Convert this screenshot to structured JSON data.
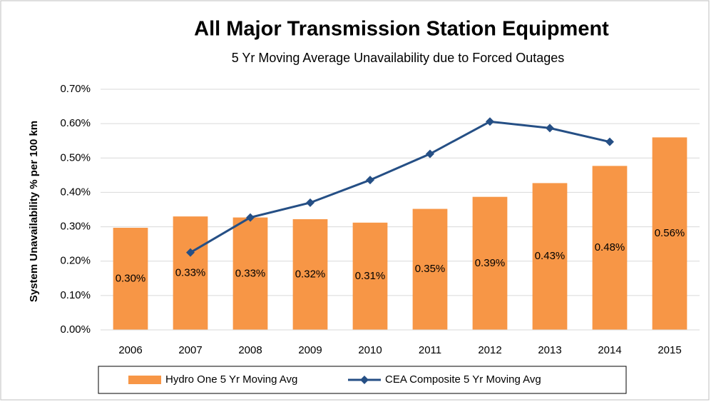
{
  "chart_data": {
    "type": "bar",
    "title": "All Major Transmission Station Equipment",
    "subtitle": "5 Yr Moving Average Unavailability due to Forced Outages",
    "y_label": "System Unavailability % per 100 km",
    "categories": [
      "2006",
      "2007",
      "2008",
      "2009",
      "2010",
      "2011",
      "2012",
      "2013",
      "2014",
      "2015"
    ],
    "series": [
      {
        "name": "Hydro One 5 Yr Moving Avg",
        "type": "bar",
        "color": "#f79646",
        "values": [
          0.297,
          0.33,
          0.327,
          0.322,
          0.312,
          0.352,
          0.387,
          0.427,
          0.477,
          0.56
        ],
        "value_labels": [
          "0.30%",
          "0.33%",
          "0.33%",
          "0.32%",
          "0.31%",
          "0.35%",
          "0.39%",
          "0.43%",
          "0.48%",
          "0.56%"
        ]
      },
      {
        "name": "CEA Composite 5 Yr Moving Avg",
        "type": "line",
        "color": "#254f85",
        "values": [
          null,
          0.225,
          0.327,
          0.37,
          0.436,
          0.512,
          0.606,
          0.587,
          0.547,
          null
        ]
      }
    ],
    "ylim": [
      0,
      0.7
    ],
    "yticks": [
      {
        "value": 0,
        "label": "0.00%"
      },
      {
        "value": 0.1,
        "label": "0.10%"
      },
      {
        "value": 0.2,
        "label": "0.20%"
      },
      {
        "value": 0.3,
        "label": "0.30%"
      },
      {
        "value": 0.4,
        "label": "0.40%"
      },
      {
        "value": 0.5,
        "label": "0.50%"
      },
      {
        "value": 0.6,
        "label": "0.60%"
      },
      {
        "value": 0.7,
        "label": "0.70%"
      }
    ],
    "grid": true,
    "legend": "bottom"
  }
}
